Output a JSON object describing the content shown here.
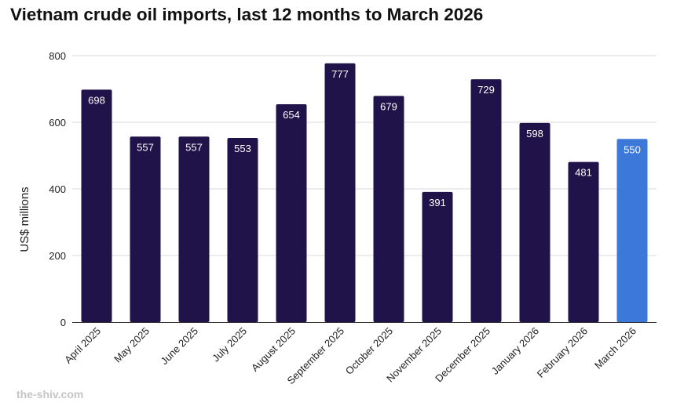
{
  "title": "Vietnam crude oil imports, last 12 months to March 2026",
  "watermark": "the-shiv.com",
  "colors": {
    "bar": "#20134a",
    "highlight_bar": "#3b78d8",
    "grid": "#d9d9d9",
    "axis": "#333333",
    "bar_label": "#ffffff"
  },
  "chart_data": {
    "type": "bar",
    "title": "Vietnam crude oil imports, last 12 months to March 2026",
    "xlabel": "",
    "ylabel": "US$ millions",
    "ylim": [
      0,
      800
    ],
    "yticks": [
      0,
      200,
      400,
      600,
      800
    ],
    "grid": true,
    "categories": [
      "April 2025",
      "May 2025",
      "June 2025",
      "July 2025",
      "August 2025",
      "September 2025",
      "October 2025",
      "November 2025",
      "December 2025",
      "January 2026",
      "February 2026",
      "March 2026"
    ],
    "values": [
      698,
      557,
      557,
      553,
      654,
      777,
      679,
      391,
      729,
      598,
      481,
      550
    ],
    "highlighted_category": "March 2026"
  }
}
